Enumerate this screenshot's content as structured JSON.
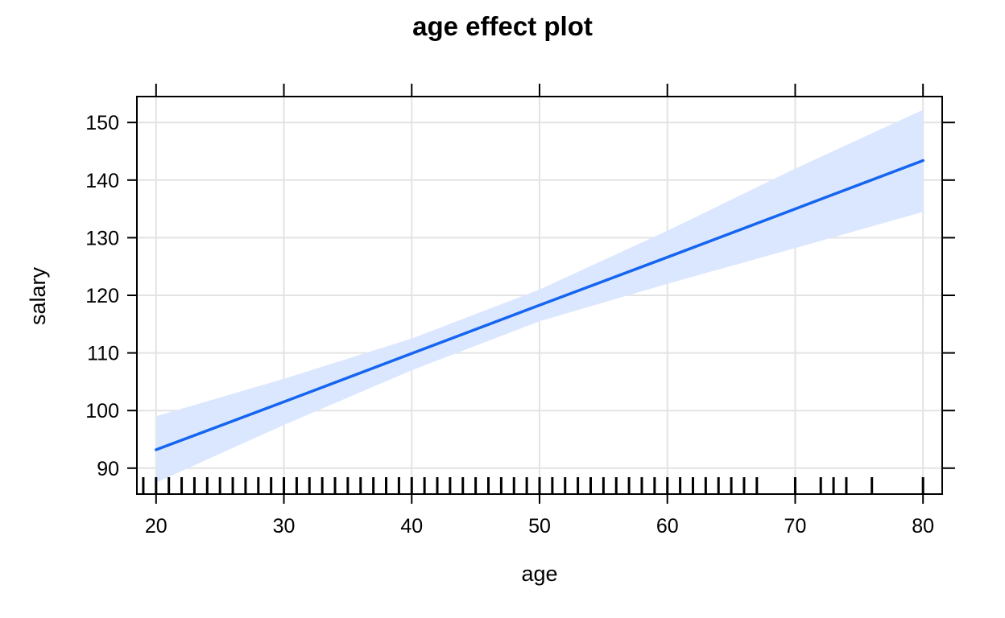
{
  "chart_data": {
    "type": "line",
    "title": "age effect plot",
    "xlabel": "age",
    "ylabel": "salary",
    "xlim": [
      18.5,
      81.5
    ],
    "ylim": [
      85.5,
      154.5
    ],
    "xticks": [
      20,
      30,
      40,
      50,
      60,
      70,
      80
    ],
    "yticks": [
      90,
      100,
      110,
      120,
      130,
      140,
      150
    ],
    "grid": true,
    "colors": {
      "line": "#1565f0",
      "band": "#dbe7fe",
      "rug": "#000000"
    },
    "series": [
      {
        "x": [
          20,
          30,
          40,
          50,
          60,
          70,
          80
        ],
        "y": [
          93.2,
          101.5,
          109.9,
          118.3,
          126.6,
          135.0,
          143.4
        ],
        "lower": [
          87.5,
          97.5,
          107.0,
          115.5,
          122.0,
          128.2,
          134.5
        ],
        "upper": [
          99.0,
          105.5,
          112.5,
          121.0,
          131.2,
          142.0,
          152.2
        ]
      }
    ],
    "rug": [
      19,
      20,
      21,
      22,
      23,
      24,
      25,
      26,
      27,
      28,
      29,
      30,
      31,
      32,
      33,
      34,
      35,
      36,
      37,
      38,
      39,
      40,
      41,
      42,
      43,
      44,
      45,
      46,
      47,
      48,
      49,
      50,
      51,
      52,
      53,
      54,
      55,
      56,
      57,
      58,
      59,
      60,
      61,
      62,
      63,
      64,
      65,
      66,
      67,
      70,
      72,
      73,
      74,
      76,
      80
    ]
  }
}
